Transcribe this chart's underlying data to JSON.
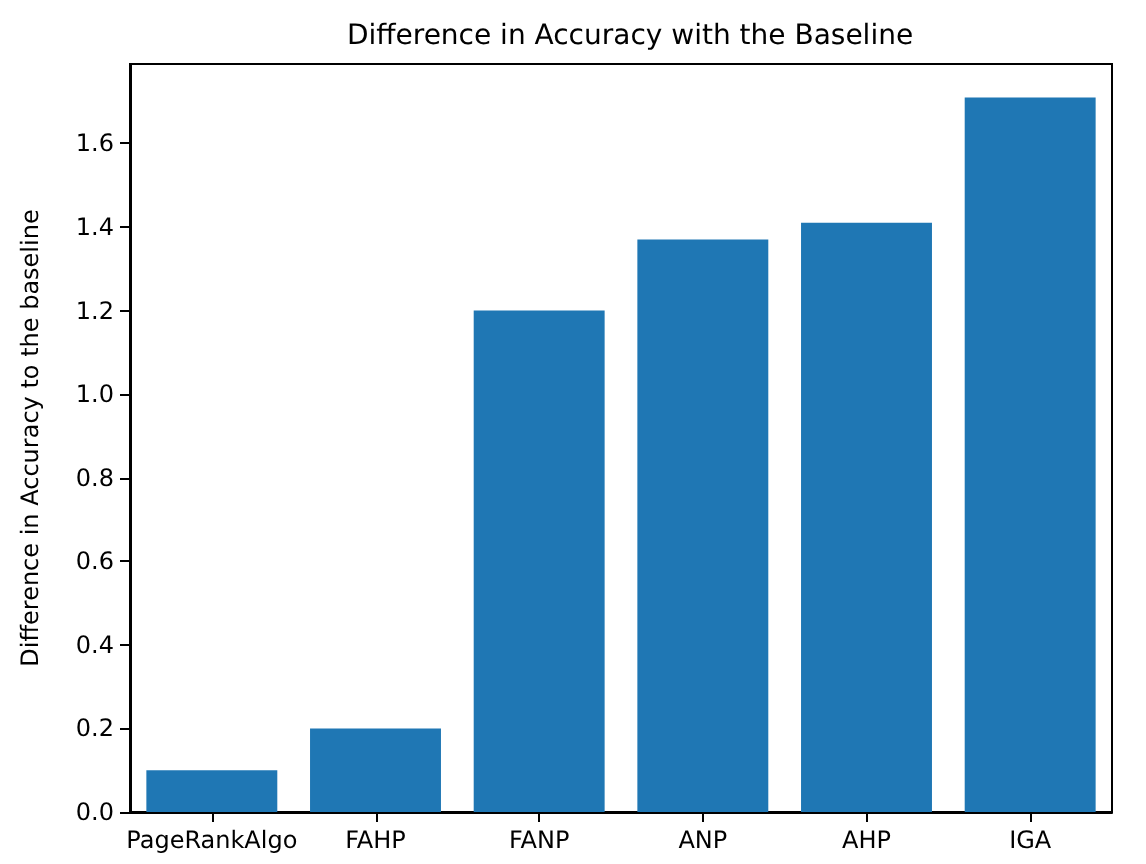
{
  "chart_data": {
    "type": "bar",
    "title": "Difference in Accuracy with the Baseline",
    "ylabel": "Difference in Accuracy to the baseline",
    "categories": [
      "PageRankAlgo",
      "FAHP",
      "FANP",
      "ANP",
      "AHP",
      "IGA"
    ],
    "values": [
      0.1,
      0.2,
      1.2,
      1.37,
      1.41,
      1.71
    ],
    "color": "#1f77b4",
    "ylim": [
      0,
      1.79
    ],
    "yticks": [
      {
        "value": 0,
        "label": "0.0"
      },
      0.2,
      0.4,
      0.6,
      0.8,
      {
        "value": 1,
        "label": "1.0"
      },
      1.2,
      1.4,
      1.6
    ],
    "grid": false
  }
}
